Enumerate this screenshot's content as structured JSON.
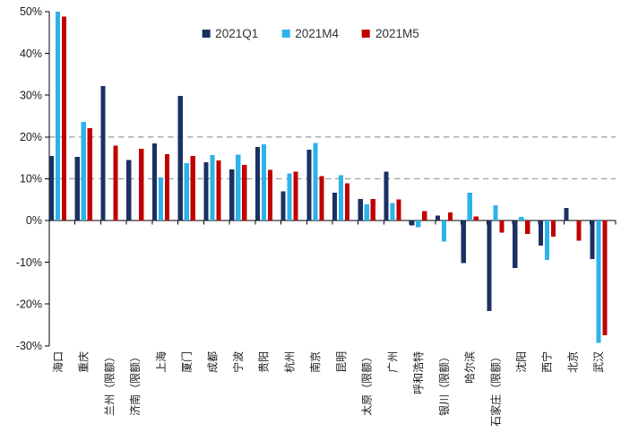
{
  "background": "#FFFFFF",
  "chart_data": {
    "type": "bar",
    "title": "",
    "xlabel": "",
    "ylabel": "",
    "categories": [
      "海口",
      "重庆",
      "兰州（限额）",
      "济南（限额）",
      "上海",
      "厦门",
      "成都",
      "宁波",
      "贵阳",
      "杭州",
      "南京",
      "昆明",
      "太原（限额）",
      "广州",
      "呼和浩特",
      "银川（限额）",
      "哈尔滨",
      "石家庄（限额）",
      "沈阳",
      "西宁",
      "北京",
      "武汉"
    ],
    "series": [
      {
        "name": "2021Q1",
        "color": "#1B3163",
        "values": [
          15.5,
          15.2,
          32.2,
          14.5,
          18.5,
          29.8,
          13.9,
          12.2,
          17.6,
          7.0,
          16.9,
          6.7,
          5.2,
          11.7,
          -1.2,
          1.2,
          -10.2,
          -21.7,
          -11.4,
          -6.0,
          3.0,
          -9.2
        ]
      },
      {
        "name": "2021M4",
        "color": "#2DB3EA",
        "values": [
          50.0,
          23.6,
          null,
          null,
          10.3,
          13.7,
          15.7,
          15.8,
          18.2,
          11.3,
          18.6,
          10.8,
          3.9,
          4.2,
          -1.6,
          -5.0,
          6.6,
          3.7,
          0.9,
          -9.4,
          null,
          -29.3
        ]
      },
      {
        "name": "2021M5",
        "color": "#C00000",
        "values": [
          48.8,
          22.1,
          17.9,
          17.2,
          15.9,
          15.5,
          14.4,
          13.3,
          12.1,
          11.7,
          10.6,
          8.9,
          5.2,
          5.0,
          2.2,
          1.9,
          1.0,
          -2.9,
          -3.2,
          -3.9,
          -4.8,
          -27.5
        ]
      }
    ],
    "ylim": [
      -30,
      50
    ],
    "ytick_step": 10,
    "ytick_labels": [
      "50%",
      "40%",
      "30%",
      "20%",
      "10%",
      "0%",
      "-10%",
      "-20%",
      "-30%"
    ],
    "gridlines_at": [
      20,
      10
    ],
    "grid_on": true,
    "grid_color": "#A6A6A6",
    "axis_color": "#000000",
    "tick_label_color": "#1A1A1A",
    "legend_position": "top-center"
  }
}
